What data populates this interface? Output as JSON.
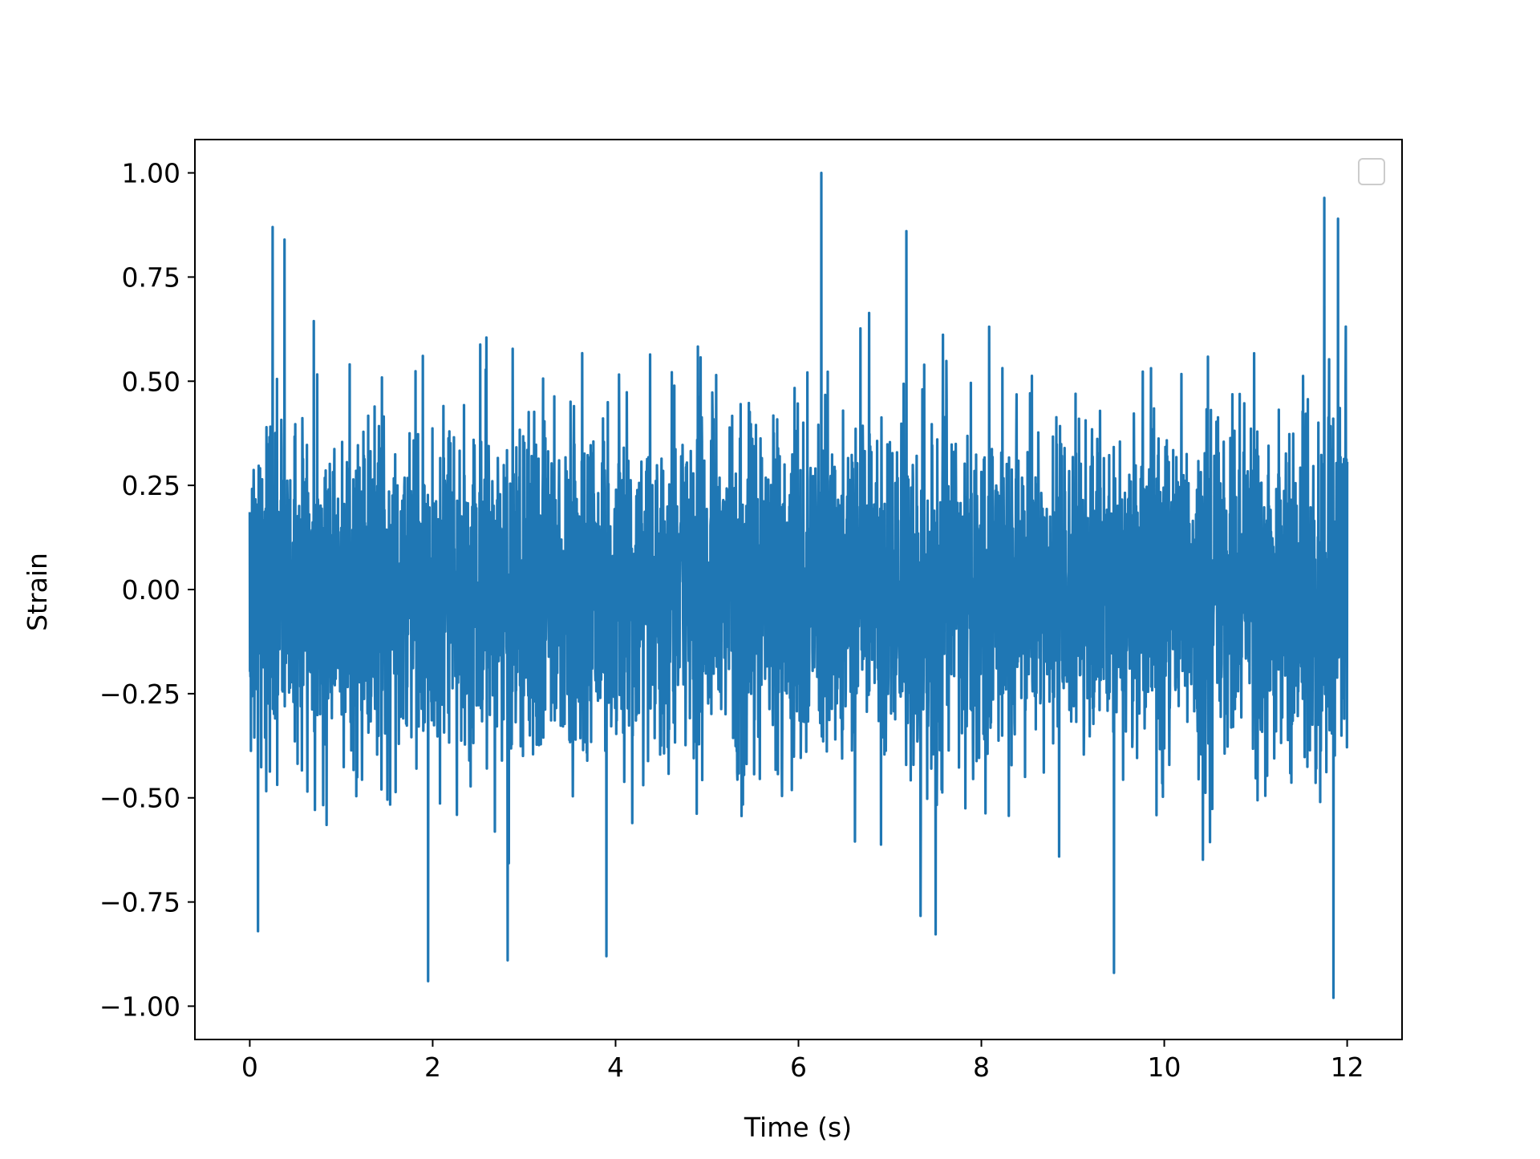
{
  "chart_data": {
    "type": "line",
    "title": "",
    "xlabel": "Time (s)",
    "ylabel": "Strain",
    "xlim": [
      -0.6,
      12.6
    ],
    "ylim": [
      -1.08,
      1.08
    ],
    "xticks": [
      0,
      2,
      4,
      6,
      8,
      10,
      12
    ],
    "yticks": [
      1.0,
      0.75,
      0.5,
      0.25,
      0.0,
      -0.25,
      -0.5,
      -0.75,
      -1.0
    ],
    "xtick_labels": [
      "0",
      "2",
      "4",
      "6",
      "8",
      "10",
      "12"
    ],
    "ytick_labels": [
      "1.00",
      "0.75",
      "0.50",
      "0.25",
      "0.00",
      "−0.25",
      "−0.50",
      "−0.75",
      "−1.00"
    ],
    "grid": false,
    "legend": {
      "placement": "top-right",
      "entries": []
    },
    "series": [
      {
        "color": "#1f77b4",
        "x_range": [
          0,
          12
        ],
        "y_range": [
          -0.98,
          1.0
        ],
        "typical_envelope": [
          -0.5,
          0.5
        ],
        "notable_points": [
          {
            "x": 0.09,
            "y": -0.82
          },
          {
            "x": 0.25,
            "y": 0.87
          },
          {
            "x": 0.38,
            "y": 0.84
          },
          {
            "x": 1.95,
            "y": -0.94
          },
          {
            "x": 2.82,
            "y": -0.89
          },
          {
            "x": 3.9,
            "y": -0.88
          },
          {
            "x": 6.25,
            "y": 1.0
          },
          {
            "x": 7.18,
            "y": 0.86
          },
          {
            "x": 9.45,
            "y": -0.92
          },
          {
            "x": 11.75,
            "y": 0.94
          },
          {
            "x": 11.85,
            "y": -0.98
          },
          {
            "x": 11.9,
            "y": 0.89
          }
        ]
      }
    ]
  }
}
